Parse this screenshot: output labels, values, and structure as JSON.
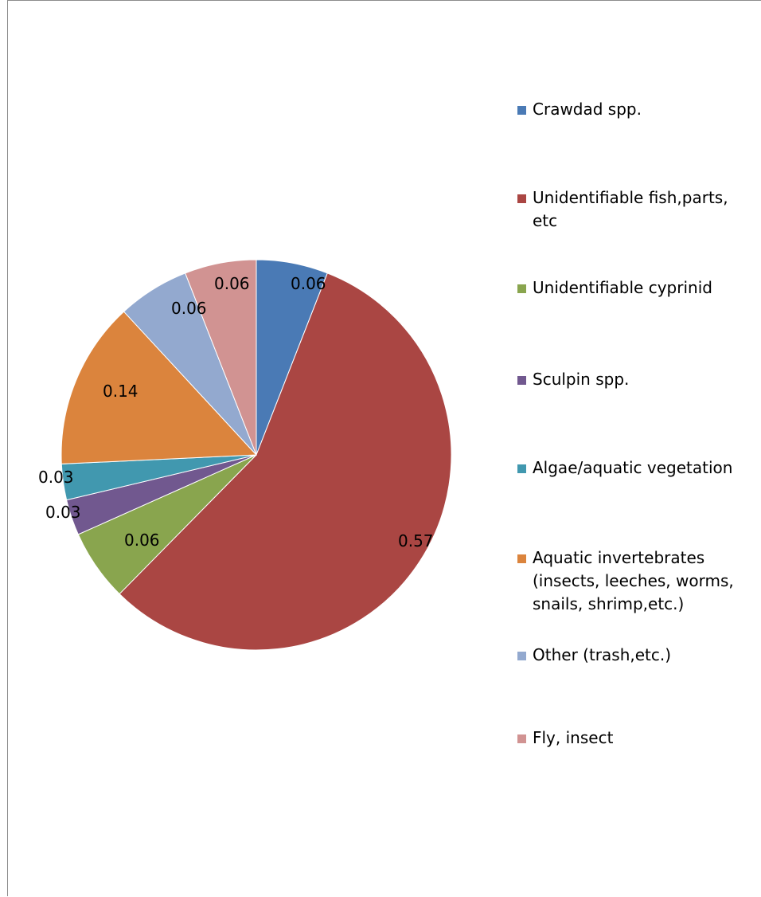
{
  "chart_data": {
    "type": "pie",
    "title": "",
    "legend_position": "right",
    "slices": [
      {
        "name": "Crawdad spp.",
        "legend_lines": [
          "Crawdad spp."
        ],
        "value": 0.06,
        "label": "0.06",
        "color": "#4a7ab5"
      },
      {
        "name": "Unidentifiable fish,parts, etc",
        "legend_lines": [
          "Unidentifiable fish,parts,",
          "etc"
        ],
        "value": 0.57,
        "label": "0.57",
        "color": "#aa4643"
      },
      {
        "name": "Unidentifiable cyprinid",
        "legend_lines": [
          "Unidentifiable cyprinid"
        ],
        "value": 0.06,
        "label": "0.06",
        "color": "#89a54e"
      },
      {
        "name": "Sculpin spp.",
        "legend_lines": [
          "Sculpin spp."
        ],
        "value": 0.03,
        "label": "0.03",
        "color": "#71588f"
      },
      {
        "name": "Algae/aquatic vegetation",
        "legend_lines": [
          "Algae/aquatic vegetation"
        ],
        "value": 0.03,
        "label": "0.03",
        "color": "#4198af"
      },
      {
        "name": "Aquatic invertebrates (insects, leeches, worms, snails, shrimp,etc.)",
        "legend_lines": [
          "Aquatic invertebrates",
          "(insects, leeches, worms,",
          "snails, shrimp,etc.)"
        ],
        "value": 0.14,
        "label": "0.14",
        "color": "#db843d"
      },
      {
        "name": "Other (trash,etc.)",
        "legend_lines": [
          "Other (trash,etc.)"
        ],
        "value": 0.06,
        "label": "0.06",
        "color": "#93a9cf"
      },
      {
        "name": "Fly, insect",
        "legend_lines": [
          "Fly, insect"
        ],
        "value": 0.06,
        "label": "0.06",
        "color": "#d19392"
      }
    ]
  }
}
